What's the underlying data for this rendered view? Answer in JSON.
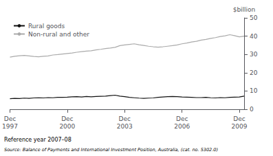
{
  "chart_data": {
    "type": "line",
    "ylabel": "$billion",
    "annotations": [
      "Reference year 2007–08",
      "Source: Balance of Payments and International Investment Position, Australia, (cat. no. 5302.0)"
    ],
    "categories": [
      "Dec\n1997",
      null,
      null,
      null,
      null,
      null,
      null,
      null,
      null,
      null,
      null,
      null,
      "Dec\n2000",
      null,
      null,
      null,
      null,
      null,
      null,
      null,
      null,
      null,
      null,
      null,
      "Dec\n2003",
      null,
      null,
      null,
      null,
      null,
      null,
      null,
      null,
      null,
      null,
      null,
      "Dec\n2006",
      null,
      null,
      null,
      null,
      null,
      null,
      null,
      null,
      null,
      null,
      null,
      "Dec\n2009",
      null
    ],
    "series": [
      {
        "name": "Rural goods",
        "color": "#111111",
        "values": [
          5.8,
          6.0,
          5.9,
          6.1,
          6.0,
          6.2,
          6.3,
          6.2,
          6.4,
          6.3,
          6.5,
          6.5,
          6.6,
          6.8,
          6.9,
          6.7,
          7.0,
          6.8,
          7.0,
          7.1,
          7.2,
          7.5,
          7.7,
          7.2,
          6.9,
          6.5,
          6.3,
          6.1,
          6.0,
          6.1,
          6.2,
          6.5,
          6.7,
          6.9,
          7.0,
          6.9,
          6.7,
          6.6,
          6.5,
          6.4,
          6.4,
          6.5,
          6.3,
          6.2,
          6.4,
          6.3,
          6.5,
          6.6,
          6.7,
          7.2
        ]
      },
      {
        "name": "Non-rural and other",
        "color": "#aaaaaa",
        "values": [
          28.5,
          29.0,
          29.3,
          29.5,
          29.2,
          28.9,
          28.7,
          29.0,
          29.2,
          29.7,
          29.9,
          30.2,
          30.5,
          30.8,
          31.2,
          31.5,
          31.8,
          32.0,
          32.5,
          32.8,
          33.2,
          33.5,
          33.9,
          34.8,
          35.2,
          35.5,
          35.8,
          35.3,
          34.9,
          34.5,
          34.2,
          34.0,
          34.2,
          34.5,
          34.8,
          35.2,
          35.8,
          36.2,
          36.8,
          37.2,
          37.8,
          38.2,
          38.8,
          39.2,
          39.8,
          40.2,
          40.8,
          40.3,
          39.6,
          40.0
        ]
      }
    ],
    "ylim": [
      0,
      50
    ],
    "yticks": [
      0,
      10,
      20,
      30,
      40,
      50
    ],
    "grid": false,
    "legend": "upper left"
  }
}
